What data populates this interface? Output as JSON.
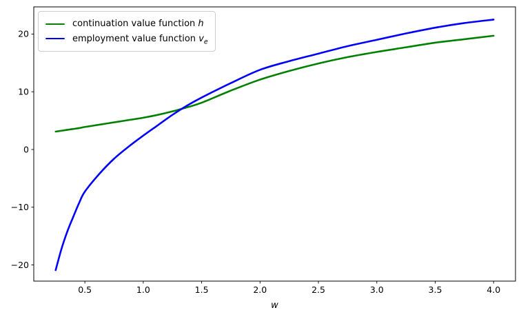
{
  "chart_data": {
    "type": "line",
    "title": "",
    "xlabel": "w",
    "ylabel": "",
    "grid": false,
    "legend_position": "upper left",
    "xlim": [
      0.0625,
      4.1875
    ],
    "ylim": [
      -22.8,
      24.7
    ],
    "xticks": {
      "values": [
        0.5,
        1.0,
        1.5,
        2.0,
        2.5,
        3.0,
        3.5,
        4.0
      ],
      "labels": [
        "0.5",
        "1.0",
        "1.5",
        "2.0",
        "2.5",
        "3.0",
        "3.5",
        "4.0"
      ]
    },
    "yticks": {
      "values": [
        -20,
        -10,
        0,
        10,
        20
      ],
      "labels": [
        "−20",
        "−10",
        "0",
        "10",
        "20"
      ]
    },
    "x": [
      0.25,
      0.3,
      0.35,
      0.4,
      0.45,
      0.5,
      0.625,
      0.75,
      0.875,
      1.0,
      1.125,
      1.25,
      1.375,
      1.5,
      1.75,
      2.0,
      2.25,
      2.5,
      2.75,
      3.0,
      3.25,
      3.5,
      3.75,
      4.0
    ],
    "series": [
      {
        "name": "continuation value function h",
        "color": "#008000",
        "values": [
          3.1,
          3.25,
          3.4,
          3.55,
          3.7,
          3.9,
          4.3,
          4.7,
          5.1,
          5.5,
          6.0,
          6.6,
          7.3,
          8.1,
          10.2,
          12.1,
          13.6,
          14.9,
          16.0,
          16.9,
          17.7,
          18.5,
          19.1,
          19.7
        ]
      },
      {
        "name": "employment value function v_e",
        "color": "#0000ff",
        "values": [
          -20.9,
          -17.2,
          -14.2,
          -11.7,
          -9.3,
          -7.3,
          -4.2,
          -1.6,
          0.5,
          2.4,
          4.2,
          6.0,
          7.6,
          9.0,
          11.5,
          13.8,
          15.3,
          16.6,
          17.9,
          19.0,
          20.1,
          21.1,
          21.9,
          22.5
        ]
      }
    ]
  },
  "legend": {
    "items": [
      {
        "prefix": "continuation value function ",
        "math": "h",
        "sub": ""
      },
      {
        "prefix": "employment value function ",
        "math": "v",
        "sub": "e"
      }
    ]
  },
  "colors": {
    "continuation": "#008000",
    "employment": "#0000ff",
    "spine": "#000000",
    "legend_border": "#cccccc",
    "background": "#ffffff"
  }
}
